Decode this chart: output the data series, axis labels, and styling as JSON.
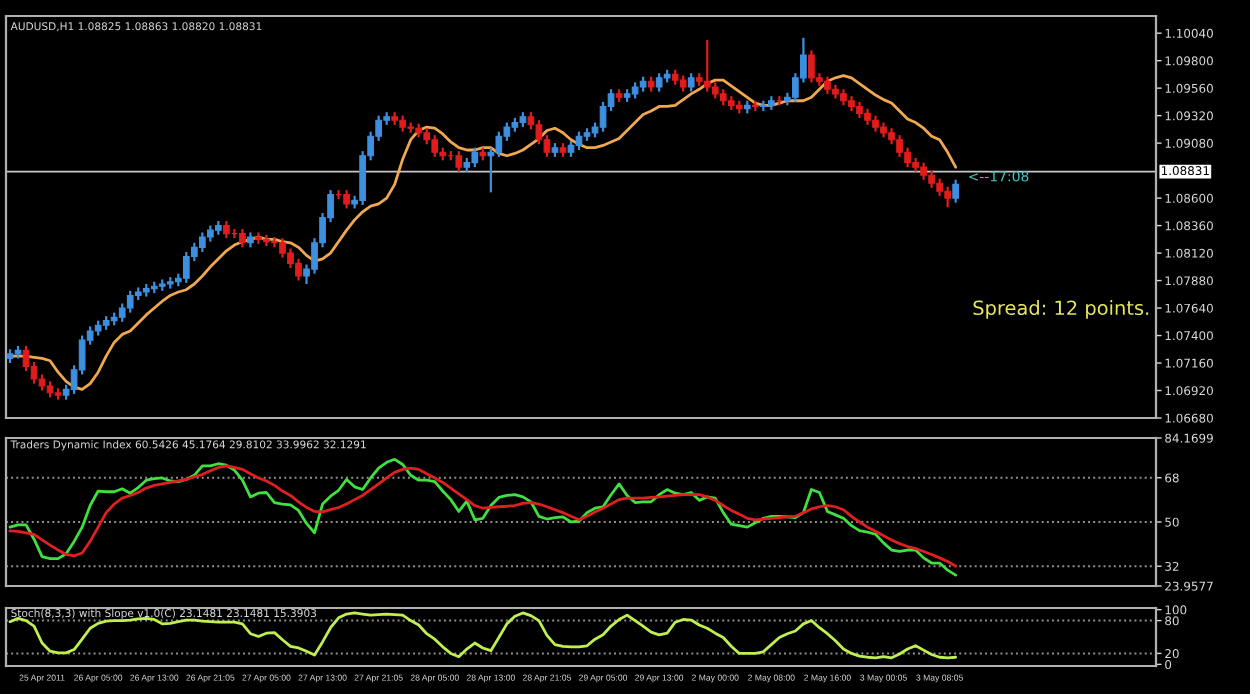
{
  "chart_data": [
    {
      "type": "candlestick",
      "title": "AUDUSD,H1 1.08825 1.08863 1.08820 1.08831",
      "tick_labels": "y",
      "categories": [
        null,
        null,
        null,
        null,
        null,
        null,
        null,
        null,
        null,
        null,
        null,
        null,
        null,
        null,
        null,
        null,
        null,
        null,
        null,
        null,
        null,
        null,
        null,
        null,
        null,
        null,
        null,
        null,
        null,
        null,
        null,
        null,
        null,
        null,
        null,
        null,
        null,
        null,
        null,
        null,
        null,
        null,
        null,
        null,
        null,
        null,
        null,
        null,
        null,
        null,
        null,
        null,
        null,
        null,
        null,
        null,
        null,
        null,
        null,
        null,
        null,
        null,
        null,
        null,
        null,
        null,
        null,
        null,
        null,
        null,
        null,
        null,
        null,
        null,
        null,
        null,
        null,
        null,
        null,
        null,
        null,
        null,
        null,
        null,
        null,
        null,
        null,
        null,
        null,
        null,
        null,
        null,
        null,
        null,
        null,
        null,
        null,
        null,
        null,
        null,
        null,
        null,
        null,
        null,
        null,
        null,
        null,
        null,
        null,
        null,
        null,
        null,
        null,
        null,
        null,
        null,
        null,
        null,
        null
      ],
      "ohlc": [
        [
          1.072,
          1.0728,
          1.0716,
          1.0724
        ],
        [
          1.0724,
          1.0731,
          1.072,
          1.0727
        ],
        [
          1.0727,
          1.0731,
          1.0709,
          1.0713
        ],
        [
          1.0713,
          1.0717,
          1.0698,
          1.0702
        ],
        [
          1.0702,
          1.0706,
          1.0692,
          1.0696
        ],
        [
          1.0696,
          1.07,
          1.0686,
          1.069
        ],
        [
          1.069,
          1.0694,
          1.0684,
          1.0688
        ],
        [
          1.0688,
          1.0697,
          1.0684,
          1.0693
        ],
        [
          1.0693,
          1.0714,
          1.0689,
          1.071
        ],
        [
          1.071,
          1.074,
          1.0706,
          1.0736
        ],
        [
          1.0736,
          1.0748,
          1.0732,
          1.0744
        ],
        [
          1.0744,
          1.0753,
          1.074,
          1.0749
        ],
        [
          1.0749,
          1.0757,
          1.0745,
          1.0753
        ],
        [
          1.0753,
          1.076,
          1.0749,
          1.0756
        ],
        [
          1.0756,
          1.0768,
          1.0752,
          1.0764
        ],
        [
          1.0764,
          1.0779,
          1.076,
          1.0775
        ],
        [
          1.0775,
          1.0782,
          1.0771,
          1.0778
        ],
        [
          1.0778,
          1.0785,
          1.0774,
          1.0781
        ],
        [
          1.0781,
          1.0787,
          1.0777,
          1.0783
        ],
        [
          1.0783,
          1.0789,
          1.0779,
          1.0785
        ],
        [
          1.0785,
          1.0791,
          1.0781,
          1.0787
        ],
        [
          1.0787,
          1.0794,
          1.0783,
          1.079
        ],
        [
          1.079,
          1.0813,
          1.0786,
          1.0809
        ],
        [
          1.0809,
          1.0821,
          1.0805,
          1.0817
        ],
        [
          1.0817,
          1.083,
          1.0813,
          1.0826
        ],
        [
          1.0826,
          1.0836,
          1.0822,
          1.0832
        ],
        [
          1.0832,
          1.084,
          1.0828,
          1.0836
        ],
        [
          1.0836,
          1.084,
          1.0825,
          1.0829
        ],
        [
          1.0829,
          1.0833,
          1.0825,
          1.0829
        ],
        [
          1.0829,
          1.0833,
          1.0817,
          1.0821
        ],
        [
          1.0821,
          1.083,
          1.0817,
          1.0826
        ],
        [
          1.0826,
          1.083,
          1.082,
          1.0824
        ],
        [
          1.0824,
          1.0828,
          1.0818,
          1.0822
        ],
        [
          1.0822,
          1.0826,
          1.0817,
          1.0821
        ],
        [
          1.0821,
          1.0825,
          1.0808,
          1.0812
        ],
        [
          1.0812,
          1.0816,
          1.0799,
          1.0803
        ],
        [
          1.0803,
          1.0807,
          1.0788,
          1.0792
        ],
        [
          1.0792,
          1.0802,
          1.0785,
          1.0798
        ],
        [
          1.0798,
          1.0825,
          1.0794,
          1.0821
        ],
        [
          1.0821,
          1.0847,
          1.0817,
          1.0843
        ],
        [
          1.0843,
          1.0867,
          1.0839,
          1.0863
        ],
        [
          1.0863,
          1.0867,
          1.0859,
          1.0863
        ],
        [
          1.0863,
          1.0867,
          1.0851,
          1.0855
        ],
        [
          1.0855,
          1.0862,
          1.0851,
          1.0858
        ],
        [
          1.0858,
          1.0901,
          1.0854,
          1.0897
        ],
        [
          1.0897,
          1.0918,
          1.0893,
          1.0914
        ],
        [
          1.0914,
          1.0932,
          1.091,
          1.0928
        ],
        [
          1.0928,
          1.0935,
          1.0924,
          1.0931
        ],
        [
          1.0931,
          1.0935,
          1.0924,
          1.0928
        ],
        [
          1.0928,
          1.0932,
          1.0918,
          1.0922
        ],
        [
          1.0922,
          1.0926,
          1.0917,
          1.0921
        ],
        [
          1.0921,
          1.0925,
          1.0913,
          1.0917
        ],
        [
          1.0917,
          1.0921,
          1.0907,
          1.0911
        ],
        [
          1.0911,
          1.0915,
          1.0896,
          1.09
        ],
        [
          1.09,
          1.0904,
          1.0893,
          1.0897
        ],
        [
          1.0897,
          1.0901,
          1.0893,
          1.0897
        ],
        [
          1.0897,
          1.0901,
          1.0883,
          1.0887
        ],
        [
          1.0887,
          1.0895,
          1.0883,
          1.0891
        ],
        [
          1.0891,
          1.0904,
          1.0887,
          1.09
        ],
        [
          1.09,
          1.0904,
          1.0893,
          1.0897
        ],
        [
          1.0897,
          1.0904,
          1.0865,
          1.09
        ],
        [
          1.09,
          1.0918,
          1.0896,
          1.0914
        ],
        [
          1.0914,
          1.0926,
          1.091,
          1.0922
        ],
        [
          1.0922,
          1.093,
          1.0918,
          1.0926
        ],
        [
          1.0926,
          1.0935,
          1.0922,
          1.0931
        ],
        [
          1.0931,
          1.0935,
          1.092,
          1.0924
        ],
        [
          1.0924,
          1.0928,
          1.0907,
          1.0911
        ],
        [
          1.0911,
          1.0915,
          1.0896,
          1.09
        ],
        [
          1.09,
          1.0908,
          1.0896,
          1.0904
        ],
        [
          1.0904,
          1.0908,
          1.0896,
          1.09
        ],
        [
          1.09,
          1.091,
          1.0896,
          1.0906
        ],
        [
          1.0906,
          1.0918,
          1.0902,
          1.0914
        ],
        [
          1.0914,
          1.0921,
          1.091,
          1.0917
        ],
        [
          1.0917,
          1.0926,
          1.0913,
          1.0922
        ],
        [
          1.0922,
          1.0944,
          1.0918,
          1.094
        ],
        [
          1.094,
          1.0955,
          1.0936,
          1.0951
        ],
        [
          1.0951,
          1.0955,
          1.0944,
          1.0948
        ],
        [
          1.0948,
          1.0955,
          1.0944,
          1.0951
        ],
        [
          1.0951,
          1.0961,
          1.0947,
          1.0957
        ],
        [
          1.0957,
          1.0966,
          1.0953,
          1.0962
        ],
        [
          1.0962,
          1.0966,
          1.0953,
          1.0957
        ],
        [
          1.0957,
          1.0969,
          1.0953,
          1.0965
        ],
        [
          1.0965,
          1.0972,
          1.0961,
          1.0968
        ],
        [
          1.0968,
          1.0972,
          1.0959,
          1.0963
        ],
        [
          1.0963,
          1.0967,
          1.0953,
          1.0957
        ],
        [
          1.0957,
          1.0969,
          1.0953,
          1.0965
        ],
        [
          1.0965,
          1.0969,
          1.0958,
          1.0962
        ],
        [
          1.0962,
          1.0998,
          1.0953,
          1.0957
        ],
        [
          1.0957,
          1.0961,
          1.0947,
          1.0951
        ],
        [
          1.0951,
          1.0955,
          1.0941,
          1.0945
        ],
        [
          1.0945,
          1.0949,
          1.0937,
          1.0941
        ],
        [
          1.0941,
          1.0945,
          1.0934,
          1.0938
        ],
        [
          1.0938,
          1.0945,
          1.0934,
          1.0941
        ],
        [
          1.0941,
          1.0945,
          1.0936,
          1.094
        ],
        [
          1.094,
          1.0945,
          1.0936,
          1.0941
        ],
        [
          1.0941,
          1.0949,
          1.0937,
          1.0945
        ],
        [
          1.0945,
          1.0949,
          1.0941,
          1.0945
        ],
        [
          1.0945,
          1.0952,
          1.0941,
          1.0948
        ],
        [
          1.0948,
          1.0969,
          1.0944,
          1.0965
        ],
        [
          1.0965,
          1.1,
          1.0961,
          1.0985
        ],
        [
          1.0985,
          1.0989,
          1.0961,
          1.0965
        ],
        [
          1.0965,
          1.0969,
          1.0958,
          1.0962
        ],
        [
          1.0962,
          1.0966,
          1.0951,
          1.0955
        ],
        [
          1.0955,
          1.0959,
          1.0947,
          1.0951
        ],
        [
          1.0951,
          1.0955,
          1.0941,
          1.0945
        ],
        [
          1.0945,
          1.0949,
          1.0936,
          1.094
        ],
        [
          1.094,
          1.0944,
          1.093,
          1.0934
        ],
        [
          1.0934,
          1.0938,
          1.0924,
          1.0928
        ],
        [
          1.0928,
          1.0932,
          1.0918,
          1.0922
        ],
        [
          1.0922,
          1.0926,
          1.0913,
          1.0917
        ],
        [
          1.0917,
          1.0921,
          1.0907,
          1.0911
        ],
        [
          1.0911,
          1.0915,
          1.0896,
          1.09
        ],
        [
          1.09,
          1.0904,
          1.0887,
          1.0891
        ],
        [
          1.0891,
          1.0895,
          1.0883,
          1.0887
        ],
        [
          1.0887,
          1.0891,
          1.0876,
          1.088
        ],
        [
          1.088,
          1.0884,
          1.0869,
          1.0873
        ],
        [
          1.0873,
          1.0877,
          1.0862,
          1.0866
        ],
        [
          1.0866,
          1.087,
          1.0852,
          1.086
        ],
        [
          1.086,
          1.0876,
          1.0856,
          1.0872
        ]
      ],
      "colors": [
        "#3d8fe0",
        "#3d8fe0",
        "#e01c1c",
        "#e01c1c",
        "#e01c1c",
        "#e01c1c",
        "#e01c1c",
        "#3d8fe0",
        "#3d8fe0",
        "#3d8fe0",
        "#3d8fe0",
        "#3d8fe0",
        "#3d8fe0",
        "#3d8fe0",
        "#3d8fe0",
        "#3d8fe0",
        "#3d8fe0",
        "#3d8fe0",
        "#3d8fe0",
        "#3d8fe0",
        "#3d8fe0",
        "#3d8fe0",
        "#3d8fe0",
        "#3d8fe0",
        "#3d8fe0",
        "#3d8fe0",
        "#3d8fe0",
        "#e01c1c",
        "#e01c1c",
        "#e01c1c",
        "#3d8fe0",
        "#e01c1c",
        "#e01c1c",
        "#e01c1c",
        "#e01c1c",
        "#e01c1c",
        "#e01c1c",
        "#3d8fe0",
        "#3d8fe0",
        "#3d8fe0",
        "#3d8fe0",
        "#e01c1c",
        "#e01c1c",
        "#3d8fe0",
        "#3d8fe0",
        "#3d8fe0",
        "#3d8fe0",
        "#3d8fe0",
        "#e01c1c",
        "#e01c1c",
        "#e01c1c",
        "#e01c1c",
        "#e01c1c",
        "#e01c1c",
        "#e01c1c",
        "#e01c1c",
        "#e01c1c",
        "#3d8fe0",
        "#3d8fe0",
        "#e01c1c",
        "#3d8fe0",
        "#3d8fe0",
        "#3d8fe0",
        "#3d8fe0",
        "#3d8fe0",
        "#e01c1c",
        "#e01c1c",
        "#e01c1c",
        "#3d8fe0",
        "#e01c1c",
        "#3d8fe0",
        "#3d8fe0",
        "#3d8fe0",
        "#3d8fe0",
        "#3d8fe0",
        "#3d8fe0",
        "#e01c1c",
        "#3d8fe0",
        "#3d8fe0",
        "#3d8fe0",
        "#e01c1c",
        "#3d8fe0",
        "#3d8fe0",
        "#e01c1c",
        "#e01c1c",
        "#3d8fe0",
        "#e01c1c",
        "#e01c1c",
        "#e01c1c",
        "#e01c1c",
        "#e01c1c",
        "#e01c1c",
        "#3d8fe0",
        "#e01c1c",
        "#3d8fe0",
        "#3d8fe0",
        "#e01c1c",
        "#3d8fe0",
        "#3d8fe0",
        "#3d8fe0",
        "#e01c1c",
        "#e01c1c",
        "#e01c1c",
        "#e01c1c",
        "#e01c1c",
        "#e01c1c",
        "#e01c1c",
        "#e01c1c",
        "#e01c1c",
        "#e01c1c",
        "#e01c1c",
        "#e01c1c",
        "#e01c1c",
        "#e01c1c",
        "#e01c1c",
        "#e01c1c",
        "#e01c1c",
        "#e01c1c",
        "#3d8fe0"
      ],
      "series": [
        {
          "type": "line",
          "color": "#f0a850",
          "values": [
            1.0722,
            1.0722,
            1.0722,
            1.0721,
            1.072,
            1.0718,
            1.0708,
            1.07,
            1.0695,
            1.0693,
            1.0698,
            1.0708,
            1.0722,
            1.0734,
            1.0741,
            1.0744,
            1.0751,
            1.0758,
            1.0764,
            1.077,
            1.0775,
            1.0778,
            1.078,
            1.0785,
            1.0792,
            1.08,
            1.0807,
            1.0814,
            1.0819,
            1.0822,
            1.0824,
            1.0826,
            1.0824,
            1.0824,
            1.0822,
            1.0821,
            1.0817,
            1.081,
            1.0805,
            1.0807,
            1.0812,
            1.0822,
            1.0832,
            1.0841,
            1.0848,
            1.0853,
            1.0855,
            1.086,
            1.0872,
            1.0894,
            1.0911,
            1.0919,
            1.0922,
            1.0921,
            1.0916,
            1.0909,
            1.0904,
            1.0902,
            1.0902,
            1.0904,
            1.0904,
            1.0899,
            1.0897,
            1.0899,
            1.0902,
            1.0907,
            1.0912,
            1.0919,
            1.0921,
            1.0917,
            1.0911,
            1.0907,
            1.0904,
            1.0904,
            1.0906,
            1.0909,
            1.0912,
            1.0919,
            1.0926,
            1.0933,
            1.0936,
            1.094,
            1.094,
            1.0941,
            1.0946,
            1.0951,
            1.0955,
            1.096,
            1.0963,
            1.0963,
            1.0958,
            1.0953,
            1.0948,
            1.0943,
            1.0941,
            1.0941,
            1.0943,
            1.0945,
            1.0945,
            1.0945,
            1.0948,
            1.0955,
            1.0962,
            1.0965,
            1.0967,
            1.0965,
            1.096,
            1.0955,
            1.095,
            1.0946,
            1.0943,
            1.0936,
            1.0929,
            1.0926,
            1.0921,
            1.0914,
            1.0911,
            1.09,
            1.0887
          ]
        }
      ],
      "ylim": [
        1.0668,
        1.1019
      ],
      "yticks": [
        {
          "value": 1.0668,
          "label": "1.06680"
        },
        {
          "value": 1.0692,
          "label": "1.06920"
        },
        {
          "value": 1.0716,
          "label": "1.07160"
        },
        {
          "value": 1.074,
          "label": "1.07400"
        },
        {
          "value": 1.0764,
          "label": "1.07640"
        },
        {
          "value": 1.0788,
          "label": "1.07880"
        },
        {
          "value": 1.0812,
          "label": "1.08120"
        },
        {
          "value": 1.0836,
          "label": "1.08360"
        },
        {
          "value": 1.086,
          "label": "1.08600"
        },
        {
          "value": 1.0908,
          "label": "1.09080"
        },
        {
          "value": 1.0932,
          "label": "1.09320"
        },
        {
          "value": 1.0956,
          "label": "1.09560"
        },
        {
          "value": 1.098,
          "label": "1.09800"
        },
        {
          "value": 1.1004,
          "label": "1.10040"
        }
      ],
      "ref_lines": [
        {
          "axis": "y",
          "value": 1.08831,
          "label": "1.08831",
          "color": "#c8c8c8",
          "line_style": "solid"
        }
      ],
      "annotations": [
        {
          "text": "<--17:08",
          "y": 1.0878
        },
        "Spread: 12 points."
      ]
    },
    {
      "type": "line",
      "title": "Traders Dynamic Index 60.5426 45.1764 29.8102 33.9962 32.1291",
      "tick_labels": "y",
      "categories": [
        null,
        null,
        null,
        null,
        null,
        null,
        null,
        null,
        null,
        null,
        null,
        null,
        null,
        null,
        null,
        null,
        null,
        null,
        null,
        null,
        null,
        null,
        null,
        null,
        null,
        null,
        null,
        null,
        null,
        null,
        null,
        null,
        null,
        null,
        null,
        null,
        null,
        null,
        null,
        null,
        null,
        null,
        null,
        null,
        null,
        null,
        null,
        null,
        null,
        null,
        null,
        null,
        null,
        null,
        null,
        null,
        null,
        null,
        null,
        null,
        null,
        null,
        null,
        null,
        null,
        null,
        null,
        null,
        null,
        null,
        null,
        null,
        null,
        null,
        null,
        null,
        null,
        null,
        null,
        null,
        null,
        null,
        null,
        null,
        null,
        null,
        null,
        null,
        null,
        null,
        null,
        null,
        null,
        null,
        null,
        null,
        null,
        null,
        null,
        null,
        null,
        null,
        null,
        null,
        null,
        null,
        null,
        null,
        null,
        null,
        null,
        null,
        null,
        null,
        null,
        null,
        null,
        null,
        null
      ],
      "series": [
        {
          "color": "#40e040",
          "values": [
            47.9,
            48.8,
            48.8,
            43.0,
            35.9,
            35.1,
            35.1,
            37.1,
            42.1,
            47.9,
            56.7,
            62.6,
            62.3,
            62.3,
            63.5,
            61.7,
            64.0,
            67.0,
            67.6,
            67.9,
            66.7,
            66.4,
            67.3,
            69.0,
            72.8,
            72.8,
            73.7,
            73.1,
            71.1,
            67.0,
            60.2,
            61.7,
            62.0,
            57.9,
            57.3,
            57.0,
            54.7,
            49.4,
            45.6,
            57.3,
            60.5,
            62.9,
            67.3,
            64.3,
            63.2,
            67.9,
            71.9,
            74.3,
            75.5,
            73.4,
            69.0,
            67.0,
            67.0,
            66.4,
            62.6,
            59.1,
            54.3,
            58.5,
            50.9,
            51.5,
            56.7,
            60.0,
            60.8,
            61.1,
            60.2,
            58.2,
            52.3,
            51.2,
            51.8,
            52.1,
            50.0,
            50.3,
            53.8,
            55.6,
            56.2,
            61.1,
            65.5,
            60.8,
            57.9,
            58.2,
            58.2,
            61.1,
            63.2,
            61.7,
            61.1,
            62.0,
            58.8,
            60.2,
            59.7,
            53.8,
            49.1,
            48.5,
            47.9,
            49.7,
            51.5,
            52.3,
            52.3,
            52.1,
            51.8,
            53.8,
            63.2,
            62.0,
            54.3,
            52.9,
            51.5,
            48.5,
            46.5,
            45.9,
            45.0,
            41.5,
            38.6,
            38.0,
            38.6,
            38.6,
            35.4,
            33.3,
            33.3,
            30.4,
            28.4
          ]
        },
        {
          "color": "#e02020",
          "values": [
            46.4,
            46.2,
            45.6,
            45.0,
            42.7,
            40.6,
            38.6,
            36.8,
            36.2,
            37.4,
            42.1,
            47.9,
            53.8,
            57.3,
            59.7,
            60.8,
            62.0,
            63.8,
            64.9,
            65.5,
            66.1,
            66.7,
            67.3,
            68.4,
            69.3,
            70.8,
            72.2,
            72.8,
            72.2,
            71.4,
            69.6,
            67.9,
            66.7,
            64.9,
            62.6,
            60.8,
            58.2,
            55.9,
            54.3,
            54.1,
            55.0,
            55.9,
            57.3,
            59.1,
            60.8,
            63.2,
            65.5,
            67.9,
            70.2,
            71.4,
            71.9,
            71.4,
            69.6,
            67.9,
            66.1,
            63.8,
            61.4,
            59.1,
            56.7,
            55.6,
            55.9,
            56.2,
            56.4,
            56.7,
            57.6,
            57.9,
            57.3,
            56.2,
            55.0,
            53.8,
            52.3,
            50.9,
            52.3,
            54.1,
            55.6,
            57.3,
            59.1,
            59.7,
            59.7,
            59.7,
            60.0,
            60.2,
            60.5,
            60.8,
            61.1,
            61.1,
            61.1,
            60.2,
            58.8,
            56.7,
            54.7,
            53.2,
            51.5,
            50.9,
            51.2,
            51.5,
            51.8,
            52.1,
            52.3,
            53.8,
            55.3,
            56.2,
            56.7,
            56.2,
            55.0,
            52.3,
            50.0,
            47.9,
            46.2,
            44.4,
            42.7,
            41.2,
            40.0,
            39.2,
            38.0,
            36.8,
            35.4,
            33.9,
            32.1
          ]
        }
      ],
      "ylim": [
        23.9577,
        84.1699
      ],
      "yticks": [
        {
          "value": 23.9577,
          "label": "23.9577"
        },
        32,
        50,
        68,
        {
          "value": 84.1699,
          "label": "84.1699"
        }
      ],
      "ref_lines": [
        {
          "axis": "y",
          "value": 32,
          "color": "#909090",
          "line_style": "dotted"
        },
        {
          "axis": "y",
          "value": 50,
          "color": "#909090",
          "line_style": "dotted"
        },
        {
          "axis": "y",
          "value": 68,
          "color": "#909090",
          "line_style": "dotted"
        }
      ]
    },
    {
      "type": "line",
      "title": "Stoch(8,3,3) with Slope v1.0(C) 23.1481 23.1481 15.3903",
      "categories": [
        null,
        null,
        null,
        null,
        "25 Apr 2011",
        null,
        null,
        null,
        null,
        null,
        null,
        "26 Apr 05:00",
        null,
        null,
        null,
        null,
        null,
        null,
        "26 Apr 13:00",
        null,
        null,
        null,
        null,
        null,
        null,
        "26 Apr 21:05",
        null,
        null,
        null,
        null,
        null,
        null,
        "27 Apr 05:00",
        null,
        null,
        null,
        null,
        null,
        null,
        "27 Apr 13:00",
        null,
        null,
        null,
        null,
        null,
        null,
        "27 Apr 21:05",
        null,
        null,
        null,
        null,
        null,
        null,
        "28 Apr 05:00",
        null,
        null,
        null,
        null,
        null,
        null,
        "28 Apr 13:00",
        null,
        null,
        null,
        null,
        null,
        null,
        "28 Apr 21:05",
        null,
        null,
        null,
        null,
        null,
        null,
        "29 Apr 05:00",
        null,
        null,
        null,
        null,
        null,
        null,
        "29 Apr 13:00",
        null,
        null,
        null,
        null,
        null,
        null,
        "2 May 00:00",
        null,
        null,
        null,
        null,
        null,
        null,
        "2 May 08:00",
        null,
        null,
        null,
        null,
        null,
        null,
        "2 May 16:00",
        null,
        null,
        null,
        null,
        null,
        null,
        "3 May 00:05",
        null,
        null,
        null,
        null,
        null,
        null,
        "3 May 08:05",
        null,
        null
      ],
      "series": [
        {
          "color": "#c0f050",
          "values": [
            78,
            84,
            80,
            70,
            39,
            24,
            21,
            21,
            27,
            46,
            66,
            75,
            79,
            80,
            80,
            81,
            83,
            84,
            82,
            74,
            75,
            78,
            81,
            81,
            79,
            78,
            77,
            77,
            77,
            74,
            56,
            51,
            57,
            58,
            45,
            33,
            30,
            24,
            17,
            41,
            67,
            85,
            92,
            94,
            92,
            90,
            91,
            92,
            91,
            90,
            80,
            72,
            56,
            46,
            32,
            20,
            14,
            28,
            39,
            30,
            25,
            49,
            74,
            88,
            94,
            89,
            80,
            53,
            36,
            33,
            32,
            32,
            34,
            46,
            54,
            70,
            82,
            90,
            80,
            70,
            59,
            54,
            57,
            77,
            82,
            81,
            72,
            66,
            57,
            49,
            33,
            20,
            20,
            20,
            23,
            36,
            49,
            56,
            61,
            74,
            80,
            67,
            56,
            43,
            28,
            20,
            15,
            13,
            12,
            14,
            12,
            19,
            28,
            34,
            26,
            18,
            13,
            12,
            13
          ]
        }
      ],
      "ylim": [
        -3,
        103
      ],
      "yticks": [
        0,
        20,
        80,
        100
      ],
      "ref_lines": [
        {
          "axis": "y",
          "value": 20,
          "color": "#909090",
          "line_style": "dotted"
        },
        {
          "axis": "y",
          "value": 80,
          "color": "#909090",
          "line_style": "dotted"
        }
      ]
    }
  ]
}
